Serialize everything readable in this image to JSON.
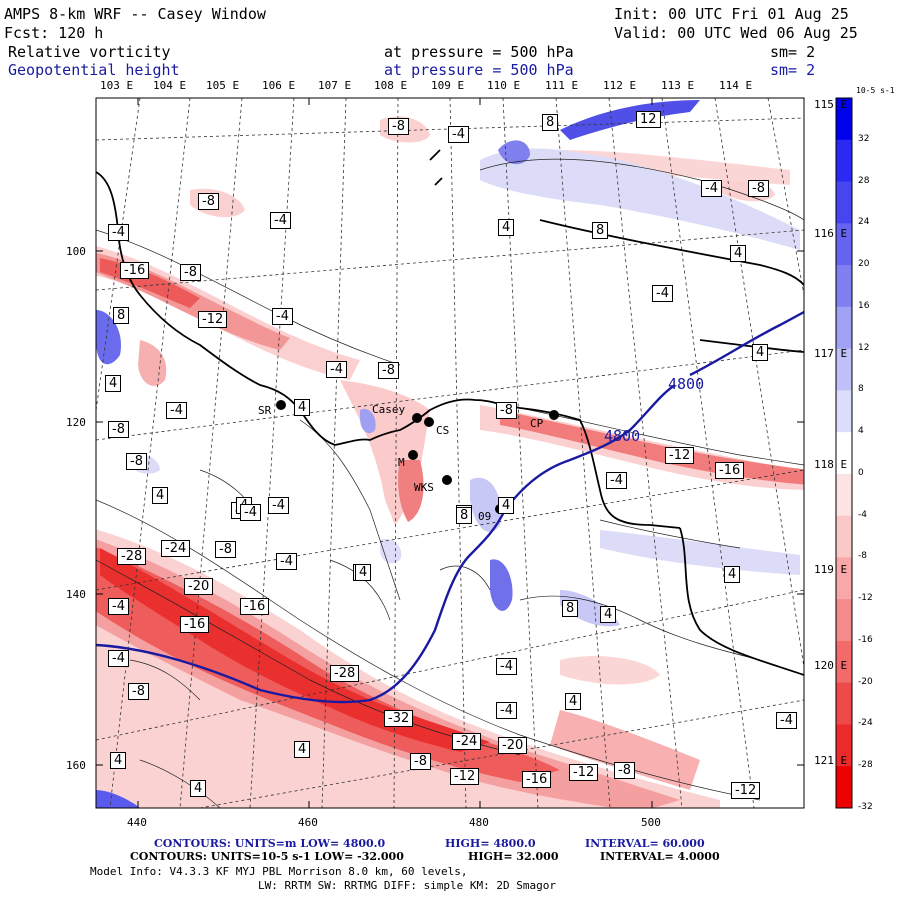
{
  "header": {
    "model": "AMPS 8-km WRF -- Casey Window",
    "init": "Init: 00 UTC Fri 01 Aug 25",
    "forecast": "Fcst:  120 h",
    "valid": "Valid: 00 UTC Wed 06 Aug 25",
    "field1": "Relative vorticity",
    "field1_level": "at pressure =  500 hPa",
    "field1_sm": "sm= 2",
    "field2": "Geopotential height",
    "field2_level": "at pressure =  500 hPa",
    "field2_sm": "sm= 2"
  },
  "top_longitudes": [
    "103 E",
    "104 E",
    "105 E",
    "106 E",
    "107 E",
    "108 E",
    "109 E",
    "110 E",
    "111 E",
    "112 E",
    "113 E",
    "114 E"
  ],
  "right_longitudes": [
    "115 E",
    "116 E",
    "117 E",
    "118 E",
    "119 E",
    "120 E",
    "121 E"
  ],
  "y_ticks": [
    "100",
    "120",
    "140",
    "160"
  ],
  "x_ticks": [
    "440",
    "460",
    "480",
    "500"
  ],
  "stations": [
    "SR",
    "Casey",
    "CS",
    "M",
    "WKS",
    "09",
    "CP"
  ],
  "height_labels": [
    "4800",
    "4800"
  ],
  "contour_labels": [
    "-8",
    "-4",
    "8",
    "12",
    "-4",
    "-8",
    "-8",
    "-4",
    "4",
    "8",
    "4",
    "-4",
    "-4",
    "-16",
    "-8",
    "-12",
    "-4",
    "8",
    "-4",
    "-8",
    "4",
    "-4",
    "4",
    "-8",
    "-8",
    "4",
    "-12",
    "-16",
    "-4",
    "4",
    "-4",
    "4",
    "-8",
    "8",
    "-28",
    "-24",
    "-8",
    "-4",
    "-20",
    "-16",
    "4",
    "8",
    "-16",
    "-4",
    "4",
    "-28",
    "-4",
    "-8",
    "4",
    "-32",
    "-4",
    "-24",
    "-20",
    "4",
    "-4",
    "-8",
    "-12",
    "-16",
    "-12",
    "-8",
    "-12",
    "4",
    "4",
    "4",
    "8",
    "4",
    "4",
    "-4",
    "-4",
    "4"
  ],
  "colorbar": {
    "unit": "10-5 s-1",
    "labels": [
      "32",
      "28",
      "24",
      "20",
      "16",
      "12",
      "8",
      "4",
      "0",
      "-4",
      "-8",
      "-12",
      "-16",
      "-20",
      "-24",
      "-28",
      "-32"
    ],
    "colors": [
      "#0000ee",
      "#2a2af4",
      "#4545f2",
      "#6464f0",
      "#8080f0",
      "#a0a0f4",
      "#c0c0f8",
      "#dcdcfb",
      "#ffffff",
      "#fde4e4",
      "#fbc8c8",
      "#f8a8a8",
      "#f58a8a",
      "#f26a6a",
      "#ef4a4a",
      "#ec2a2a",
      "#ee0000"
    ]
  },
  "footer": {
    "line1_prefix": "CONTOURS:  UNITS=m  LOW=  4800.0",
    "line1_high": "HIGH=  4800.0",
    "line1_interval": "INTERVAL=   60.000",
    "line2_prefix": "CONTOURS:  UNITS=10-5 s-1  LOW= -32.000",
    "line2_high": "HIGH=  32.000",
    "line2_interval": "INTERVAL=   4.0000",
    "line3": "Model Info: V4.3.3   KF      MYJ PBL  Morrison             8.0 km,  60 levels,",
    "line4": "LW: RRTM SW: RRTMG   DIFF: simple KM: 2D Smagor"
  }
}
